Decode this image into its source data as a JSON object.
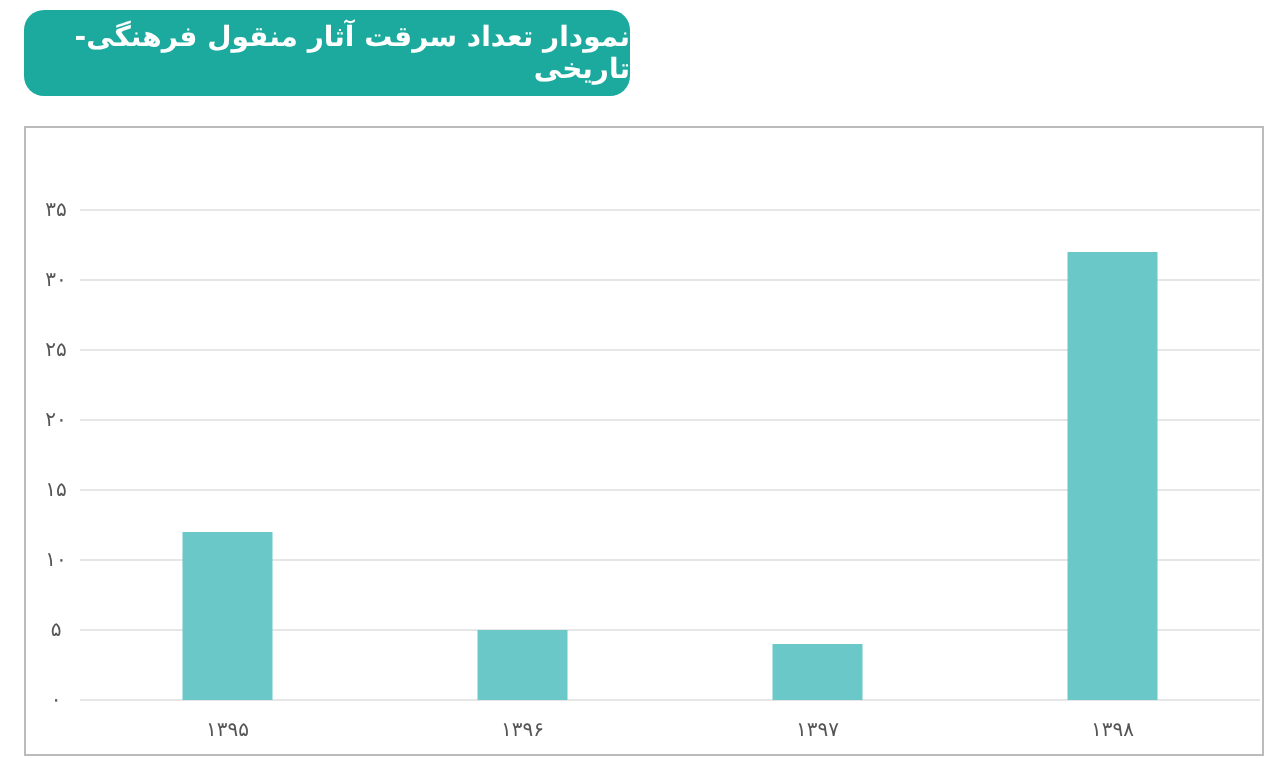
{
  "chart_data": {
    "type": "bar",
    "title": "نمودار تعداد سرقت آثار منقول فرهنگی-تاریخی",
    "categories": [
      "۱۳۹۵",
      "۱۳۹۶",
      "۱۳۹۷",
      "۱۳۹۸"
    ],
    "values": [
      12,
      5,
      4,
      32
    ],
    "color": "#6bc8c8",
    "ylim": [
      0,
      35
    ],
    "yticks": [
      {
        "value": 0,
        "label": "۰"
      },
      {
        "value": 5,
        "label": "۵"
      },
      {
        "value": 10,
        "label": "۱۰"
      },
      {
        "value": 15,
        "label": "۱۵"
      },
      {
        "value": 20,
        "label": "۲۰"
      },
      {
        "value": 25,
        "label": "۲۵"
      },
      {
        "value": 30,
        "label": "۳۰"
      },
      {
        "value": 35,
        "label": "۳۵"
      }
    ],
    "grid": "y"
  }
}
